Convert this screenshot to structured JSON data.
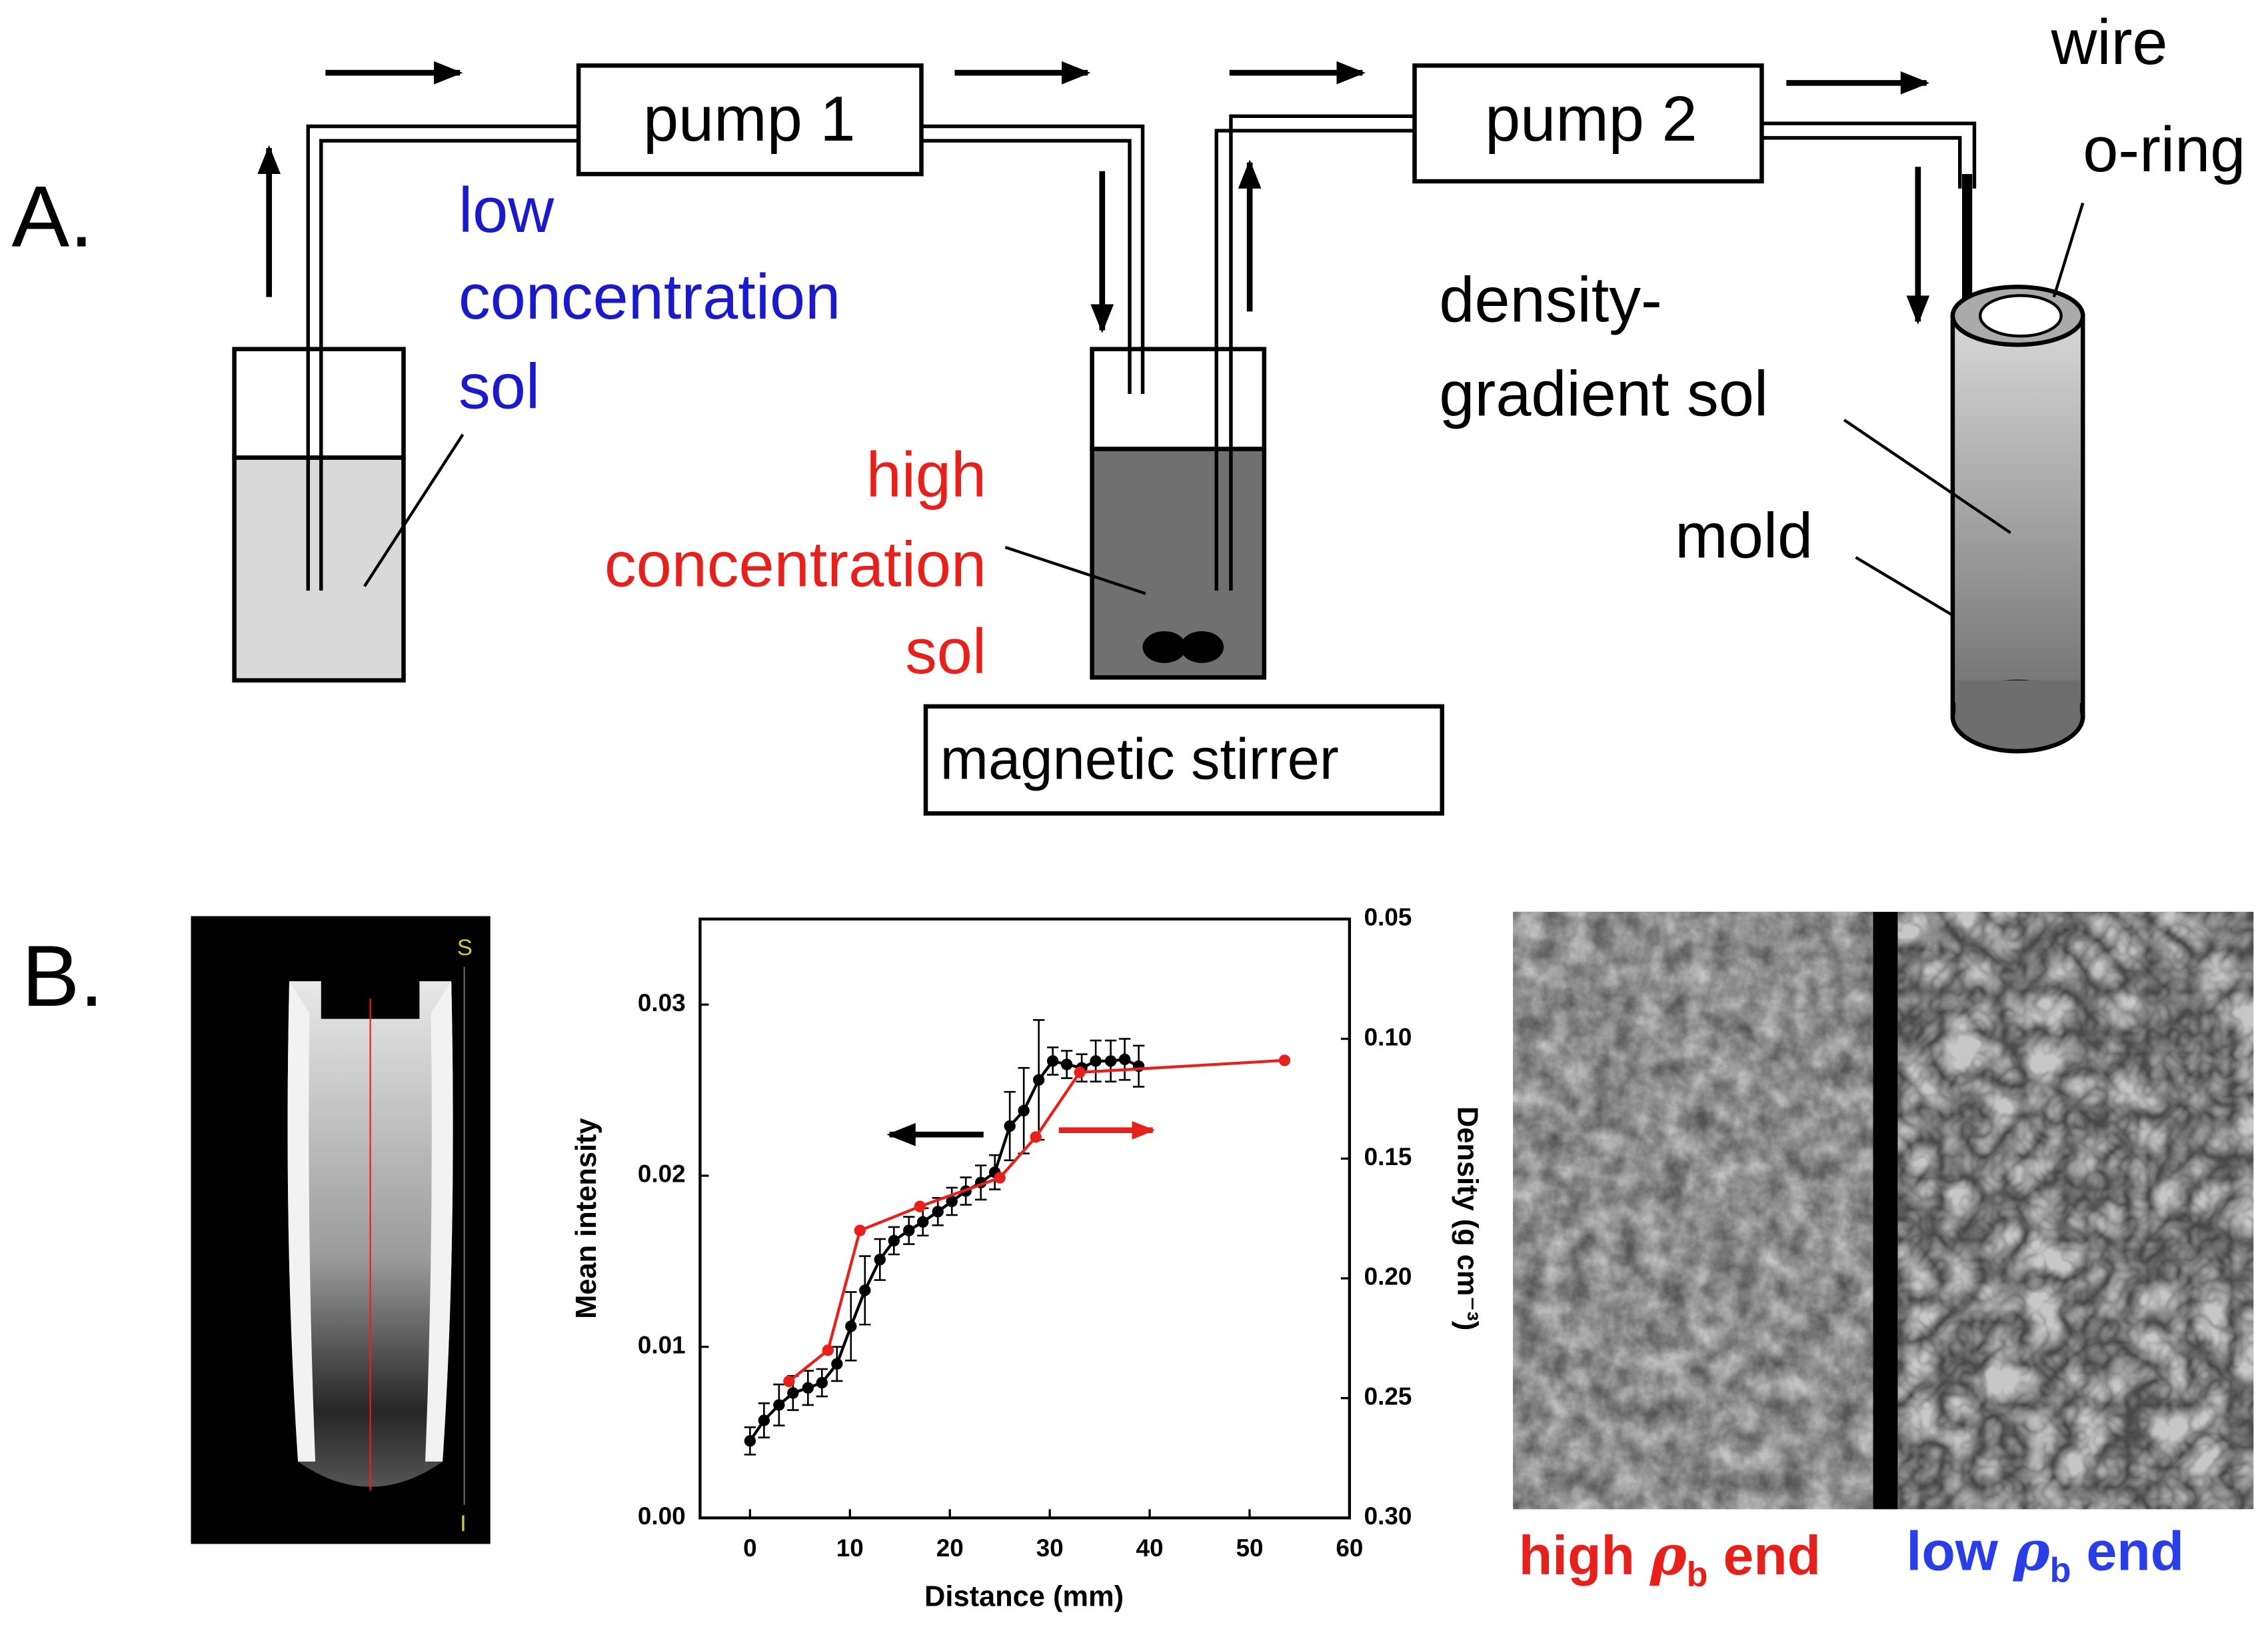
{
  "panels": {
    "a": "A.",
    "b": "B."
  },
  "diagram": {
    "pump1": "pump 1",
    "pump2": "pump 2",
    "low_sol": [
      "low",
      "concentration",
      "sol"
    ],
    "high_sol": [
      "high",
      "concentration",
      "sol"
    ],
    "stirrer": "magnetic stirrer",
    "gradient_sol": [
      "density-",
      "gradient sol"
    ],
    "mold": "mold",
    "wire": "wire",
    "oring": "o-ring"
  },
  "mri": {
    "top_label": "S",
    "bottom_label": "I"
  },
  "chart_data": {
    "type": "line",
    "xlabel": "Distance (mm)",
    "ylabel": "Mean intensity",
    "y2label": "Density (g cm⁻³)",
    "xlim": [
      -5,
      60
    ],
    "xticks": [
      0,
      10,
      20,
      30,
      40,
      50,
      60
    ],
    "ylim": [
      0,
      0.035
    ],
    "yticks": [
      {
        "value": 0,
        "label": "0.00"
      },
      0.01,
      0.02,
      0.03
    ],
    "y2lim": [
      0.3,
      0.05
    ],
    "y2ticks": [
      {
        "value": 0.3,
        "label": "0.30"
      },
      0.25,
      {
        "value": 0.2,
        "label": "0.20"
      },
      0.15,
      {
        "value": 0.1,
        "label": "0.10"
      },
      0.05
    ],
    "grid": false,
    "series": [
      {
        "name": "Mean intensity",
        "color": "#000000",
        "x": [
          0,
          1.4,
          2.9,
          4.3,
          5.8,
          7.2,
          8.7,
          10.1,
          11.5,
          13,
          14.4,
          15.9,
          17.3,
          18.8,
          20.2,
          21.6,
          23.1,
          24.5,
          26,
          27.4,
          28.9,
          30.3,
          31.7,
          33.2,
          34.6,
          36.1,
          37.5,
          38.9
        ],
        "values": [
          0.0045,
          0.0057,
          0.0066,
          0.0073,
          0.0076,
          0.0079,
          0.009,
          0.0112,
          0.0133,
          0.0151,
          0.0162,
          0.0168,
          0.0173,
          0.0179,
          0.0185,
          0.0191,
          0.0196,
          0.0202,
          0.0229,
          0.0238,
          0.0256,
          0.0267,
          0.0265,
          0.0263,
          0.0267,
          0.0267,
          0.0268,
          0.0264
        ],
        "errors": [
          0.0008,
          0.001,
          0.0012,
          0.001,
          0.001,
          0.0008,
          0.001,
          0.002,
          0.002,
          0.0012,
          0.0008,
          0.0008,
          0.0008,
          0.0008,
          0.0008,
          0.0008,
          0.001,
          0.001,
          0.002,
          0.0025,
          0.0035,
          0.0008,
          0.0008,
          0.0008,
          0.0012,
          0.0012,
          0.0012,
          0.0012
        ]
      },
      {
        "name": "Density",
        "color": "#e8201c",
        "axis": "y2",
        "x": [
          3.9,
          7.8,
          11,
          17,
          25,
          28.6,
          33,
          53.5
        ],
        "values": [
          0.243,
          0.23,
          0.18,
          0.17,
          0.158,
          0.141,
          0.114,
          0.109
        ]
      }
    ]
  },
  "sem": {
    "high": {
      "text": "high",
      "symbol": "ρ",
      "sub": "b",
      "end": "end"
    },
    "low": {
      "text": "low",
      "symbol": "ρ",
      "sub": "b",
      "end": "end"
    }
  }
}
